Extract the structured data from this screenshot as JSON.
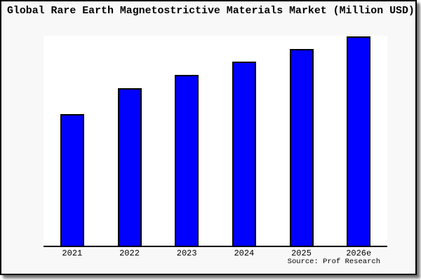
{
  "page": {
    "background": "#ffffff",
    "frame_background": "#f8f8f8",
    "frame_border_color": "#000000"
  },
  "chart_data": {
    "type": "bar",
    "title": "Global Rare Earth Magnetostrictive Materials Market (Million USD)",
    "categories": [
      "2021",
      "2022",
      "2023",
      "2024",
      "2025",
      "2026e"
    ],
    "values": [
      188,
      225,
      244,
      263,
      281,
      299
    ],
    "value_unit": "relative bar height in pixels (chart displays no y-axis scale or value labels)",
    "xlabel": "",
    "ylabel": "",
    "y_axis": "none",
    "gridlines": false,
    "legend": "none",
    "bar_color": "#0000ff",
    "bar_border_color": "#000000",
    "axis_color": "#000000",
    "source_label": "Source: Prof Research"
  }
}
